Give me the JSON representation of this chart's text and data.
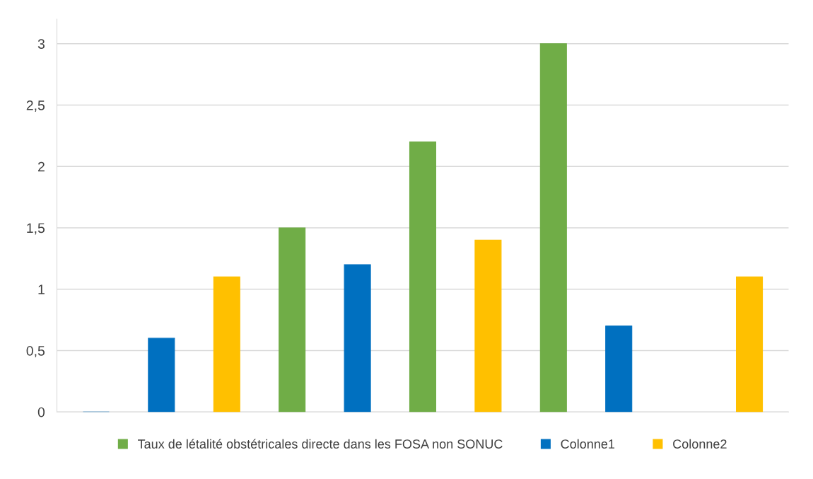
{
  "chart_data": {
    "type": "bar",
    "categories": [
      null,
      null,
      null,
      null,
      null,
      null,
      null,
      null,
      null,
      null,
      null
    ],
    "series": [
      {
        "name": "Taux de létalité obstétricales directe dans les FOSA non SONUC",
        "color": "#70ad47",
        "values": [
          null,
          null,
          null,
          1.5,
          null,
          2.2,
          null,
          3.0,
          null,
          null,
          null
        ]
      },
      {
        "name": "Colonne1",
        "color": "#0070c0",
        "values": [
          0,
          0.6,
          null,
          null,
          1.2,
          null,
          null,
          null,
          0.7,
          null,
          null
        ]
      },
      {
        "name": "Colonne2",
        "color": "#ffc000",
        "values": [
          null,
          null,
          1.1,
          null,
          null,
          null,
          1.4,
          null,
          null,
          null,
          1.1
        ]
      }
    ],
    "ylim": [
      0,
      3.2
    ],
    "yticks": [
      0,
      {
        "value": 0.5,
        "label": "0,5"
      },
      1,
      {
        "value": 1.5,
        "label": "1,5"
      },
      2,
      {
        "value": 2.5,
        "label": "2,5"
      },
      3
    ],
    "grid": "y",
    "legend": "bottom"
  }
}
